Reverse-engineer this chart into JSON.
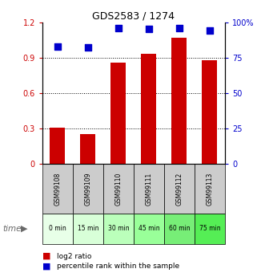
{
  "title": "GDS2583 / 1274",
  "categories": [
    "GSM99108",
    "GSM99109",
    "GSM99110",
    "GSM99111",
    "GSM99112",
    "GSM99113"
  ],
  "time_labels": [
    "0 min",
    "15 min",
    "30 min",
    "45 min",
    "60 min",
    "75 min"
  ],
  "log2_ratio": [
    0.305,
    0.255,
    0.855,
    0.935,
    1.07,
    0.875
  ],
  "percentile_rank": [
    83,
    82,
    96,
    95,
    96,
    94
  ],
  "bar_color": "#cc0000",
  "dot_color": "#0000cc",
  "ylim_left": [
    0,
    1.2
  ],
  "ylim_right": [
    0,
    100
  ],
  "yticks_left": [
    0,
    0.3,
    0.6,
    0.9,
    1.2
  ],
  "ytick_labels_left": [
    "0",
    "0.3",
    "0.6",
    "0.9",
    "1.2"
  ],
  "yticks_right": [
    0,
    25,
    50,
    75,
    100
  ],
  "ytick_labels_right": [
    "0",
    "25",
    "50",
    "75",
    "100%"
  ],
  "time_colors": [
    "#e8ffe8",
    "#d8ffd8",
    "#bbffbb",
    "#99ff99",
    "#77ee77",
    "#55ee55"
  ],
  "gsm_bg_color": "#cccccc",
  "bar_width": 0.5,
  "dot_size": 30,
  "legend_log2_label": "log2 ratio",
  "legend_pct_label": "percentile rank within the sample",
  "time_row_label": "time"
}
